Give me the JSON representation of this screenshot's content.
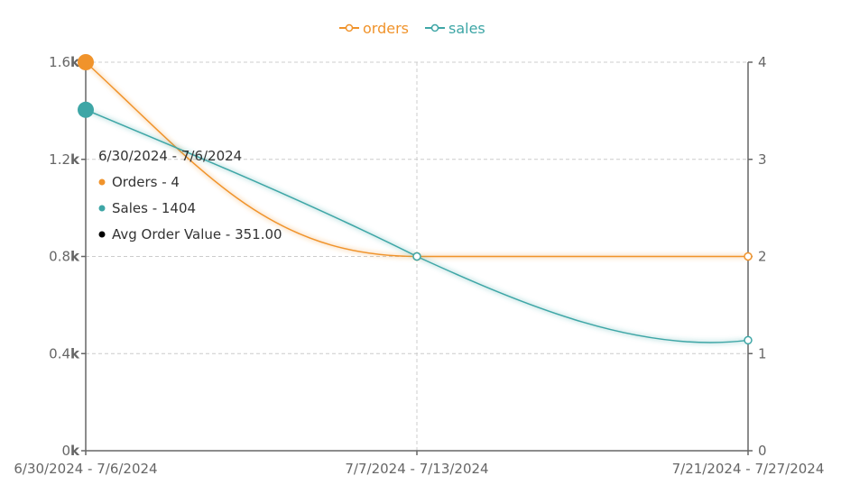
{
  "chart_data": {
    "type": "line",
    "categories": [
      "6/30/2024 - 7/6/2024",
      "7/7/2024 - 7/13/2024",
      "7/21/2024 - 7/27/2024"
    ],
    "series": [
      {
        "name": "orders",
        "axis": "right",
        "color": "#f0932b",
        "values": [
          4,
          2,
          2
        ]
      },
      {
        "name": "sales",
        "axis": "left",
        "color": "#3ea6a6",
        "values": [
          1404,
          800,
          455
        ]
      }
    ],
    "left_axis": {
      "ticks": [
        0,
        400,
        800,
        1200,
        1600
      ],
      "tick_labels": [
        {
          "num": "0",
          "unit": "k"
        },
        {
          "num": "0.4",
          "unit": "k"
        },
        {
          "num": "0.8",
          "unit": "k"
        },
        {
          "num": "1.2",
          "unit": "k"
        },
        {
          "num": "1.6",
          "unit": "k"
        }
      ],
      "ylim": [
        0,
        1600
      ]
    },
    "right_axis": {
      "ticks": [
        0,
        1,
        2,
        3,
        4
      ],
      "tick_labels": [
        "0",
        "1",
        "2",
        "3",
        "4"
      ],
      "ylim": [
        0,
        4
      ]
    },
    "grid": true,
    "legend": {
      "position": "top-center",
      "entries": [
        "orders",
        "sales"
      ]
    },
    "tooltip": {
      "title": "6/30/2024 - 7/6/2024",
      "lines": [
        {
          "text": "Orders - 4",
          "color": "#f0932b"
        },
        {
          "text": "Sales - 1404",
          "color": "#3ea6a6"
        },
        {
          "text": "Avg Order Value - 351.00",
          "color": "#000000"
        }
      ]
    },
    "colors": {
      "axis": "#666666",
      "grid": "#cccccc"
    }
  }
}
